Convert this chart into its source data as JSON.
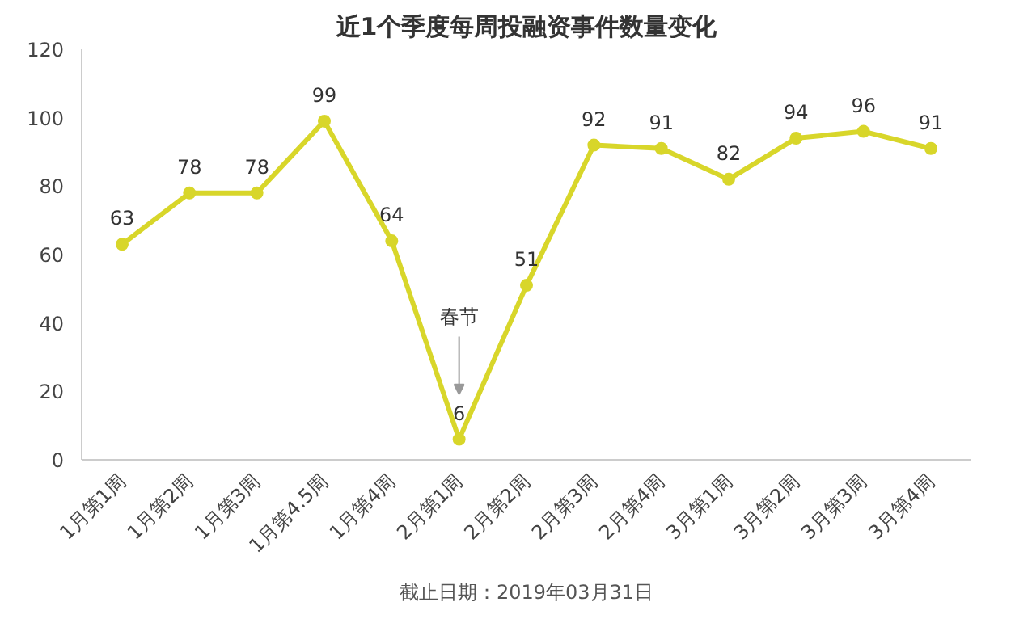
{
  "chart_data": {
    "type": "line",
    "title": "近1个季度每周投融资事件数量变化",
    "categories": [
      "1月第1周",
      "1月第2周",
      "1月第3周",
      "1月第4.5周",
      "1月第4周",
      "2月第1周",
      "2月第2周",
      "2月第3周",
      "2月第4周",
      "3月第1周",
      "3月第2周",
      "3月第3周",
      "3月第4周"
    ],
    "series": [
      {
        "color": "#d8d62a",
        "values": [
          63,
          78,
          78,
          99,
          64,
          6,
          51,
          92,
          91,
          82,
          94,
          96,
          91
        ]
      }
    ],
    "ylim": [
      0,
      120
    ],
    "yticks": [
      0,
      20,
      40,
      60,
      80,
      100,
      120
    ],
    "grid": false,
    "marker": "circle",
    "line_style": "solid",
    "data_labels": true,
    "annotations": [
      "春节",
      "截止日期：2019年03月31日"
    ]
  }
}
